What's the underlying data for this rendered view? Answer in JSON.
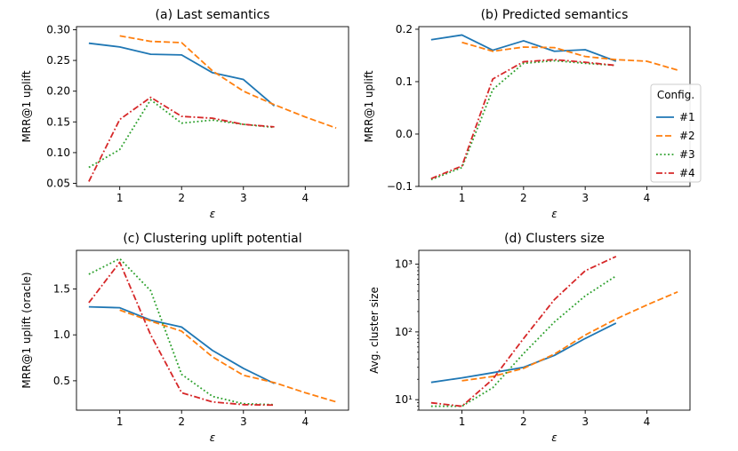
{
  "chart_data": [
    {
      "type": "line",
      "title": "(a) Last semantics",
      "xlabel": "ε",
      "ylabel": "MRR@1 uplift",
      "yscale": "linear",
      "xlim": [
        0.3,
        4.7
      ],
      "ylim": [
        0.045,
        0.305
      ],
      "xticks": [
        1,
        2,
        3,
        4
      ],
      "xtick_labels": [
        "1",
        "2",
        "3",
        "4"
      ],
      "yticks": [
        0.05,
        0.1,
        0.15,
        0.2,
        0.25,
        0.3
      ],
      "ytick_labels": [
        "0.05",
        "0.10",
        "0.15",
        "0.20",
        "0.25",
        "0.30"
      ],
      "series": [
        {
          "name": "#1",
          "color": "#1f77b4",
          "dash": "solid",
          "x": [
            0.5,
            1.0,
            1.5,
            2.0,
            2.5,
            3.0,
            3.5
          ],
          "y": [
            0.278,
            0.272,
            0.26,
            0.259,
            0.23,
            0.219,
            0.176
          ]
        },
        {
          "name": "#2",
          "color": "#ff7f0e",
          "dash": "dashed",
          "x": [
            1.0,
            1.5,
            2.0,
            2.5,
            3.0,
            3.5,
            4.0,
            4.5
          ],
          "y": [
            0.29,
            0.281,
            0.279,
            0.233,
            0.2,
            0.178,
            0.158,
            0.14
          ]
        },
        {
          "name": "#3",
          "color": "#2ca02c",
          "dash": "dotted",
          "x": [
            0.5,
            1.0,
            1.5,
            2.0,
            2.5,
            3.0,
            3.5
          ],
          "y": [
            0.076,
            0.105,
            0.186,
            0.148,
            0.153,
            0.146,
            0.141
          ]
        },
        {
          "name": "#4",
          "color": "#d62728",
          "dash": "dashdot",
          "x": [
            0.5,
            1.0,
            1.5,
            2.0,
            2.5,
            3.0,
            3.5
          ],
          "y": [
            0.053,
            0.154,
            0.19,
            0.159,
            0.156,
            0.146,
            0.142
          ]
        }
      ]
    },
    {
      "type": "line",
      "title": "(b) Predicted semantics",
      "xlabel": "ε",
      "ylabel": "MRR@1 uplift",
      "yscale": "linear",
      "xlim": [
        0.3,
        4.7
      ],
      "ylim": [
        -0.1,
        0.205
      ],
      "xticks": [
        1,
        2,
        3,
        4
      ],
      "xtick_labels": [
        "1",
        "2",
        "3",
        "4"
      ],
      "yticks": [
        -0.1,
        0.0,
        0.1,
        0.2
      ],
      "ytick_labels": [
        "−0.1",
        "0.0",
        "0.1",
        "0.2"
      ],
      "legend": {
        "title": "Config.",
        "entries": [
          "#1",
          "#2",
          "#3",
          "#4"
        ],
        "loc": "center-right"
      },
      "series": [
        {
          "name": "#1",
          "color": "#1f77b4",
          "dash": "solid",
          "x": [
            0.5,
            1.0,
            1.5,
            2.0,
            2.5,
            3.0,
            3.5
          ],
          "y": [
            0.18,
            0.189,
            0.16,
            0.178,
            0.158,
            0.161,
            0.139
          ]
        },
        {
          "name": "#2",
          "color": "#ff7f0e",
          "dash": "dashed",
          "x": [
            1.0,
            1.5,
            2.0,
            2.5,
            3.0,
            3.5,
            4.0,
            4.5
          ],
          "y": [
            0.175,
            0.158,
            0.166,
            0.165,
            0.148,
            0.142,
            0.139,
            0.122
          ]
        },
        {
          "name": "#3",
          "color": "#2ca02c",
          "dash": "dotted",
          "x": [
            0.5,
            1.0,
            1.5,
            2.0,
            2.5,
            3.0,
            3.5
          ],
          "y": [
            -0.087,
            -0.064,
            0.085,
            0.135,
            0.14,
            0.135,
            0.131
          ]
        },
        {
          "name": "#4",
          "color": "#d62728",
          "dash": "dashdot",
          "x": [
            0.5,
            1.0,
            1.5,
            2.0,
            2.5,
            3.0,
            3.5
          ],
          "y": [
            -0.085,
            -0.061,
            0.105,
            0.138,
            0.142,
            0.137,
            0.131
          ]
        }
      ]
    },
    {
      "type": "line",
      "title": "(c) Clustering uplift potential",
      "xlabel": "ε",
      "ylabel": "MRR@1 uplift (oracle)",
      "yscale": "linear",
      "xlim": [
        0.3,
        4.7
      ],
      "ylim": [
        0.18,
        1.92
      ],
      "xticks": [
        1,
        2,
        3,
        4
      ],
      "xtick_labels": [
        "1",
        "2",
        "3",
        "4"
      ],
      "yticks": [
        0.5,
        1.0,
        1.5
      ],
      "ytick_labels": [
        "0.5",
        "1.0",
        "1.5"
      ],
      "series": [
        {
          "name": "#1",
          "color": "#1f77b4",
          "dash": "solid",
          "x": [
            0.5,
            1.0,
            1.5,
            2.0,
            2.5,
            3.0,
            3.5
          ],
          "y": [
            1.305,
            1.295,
            1.16,
            1.085,
            0.83,
            0.635,
            0.47
          ]
        },
        {
          "name": "#2",
          "color": "#ff7f0e",
          "dash": "dashed",
          "x": [
            1.0,
            1.5,
            2.0,
            2.5,
            3.0,
            3.5,
            4.0,
            4.5
          ],
          "y": [
            1.27,
            1.15,
            1.04,
            0.76,
            0.56,
            0.48,
            0.37,
            0.27
          ]
        },
        {
          "name": "#3",
          "color": "#2ca02c",
          "dash": "dotted",
          "x": [
            0.5,
            1.0,
            1.5,
            2.0,
            2.5,
            3.0,
            3.5
          ],
          "y": [
            1.66,
            1.83,
            1.48,
            0.57,
            0.33,
            0.25,
            0.24
          ]
        },
        {
          "name": "#4",
          "color": "#d62728",
          "dash": "dashdot",
          "x": [
            0.5,
            1.0,
            1.5,
            2.0,
            2.5,
            3.0,
            3.5
          ],
          "y": [
            1.35,
            1.79,
            1.0,
            0.37,
            0.27,
            0.24,
            0.235
          ]
        }
      ]
    },
    {
      "type": "line",
      "title": "(d) Clusters size",
      "xlabel": "ε",
      "ylabel": "Avg. cluster size",
      "yscale": "log",
      "xlim": [
        0.3,
        4.7
      ],
      "ylim": [
        7,
        1600
      ],
      "xticks": [
        1,
        2,
        3,
        4
      ],
      "xtick_labels": [
        "1",
        "2",
        "3",
        "4"
      ],
      "yticks": [
        10,
        100,
        1000
      ],
      "ytick_labels": [
        "10¹",
        "10²",
        "10³"
      ],
      "series": [
        {
          "name": "#1",
          "color": "#1f77b4",
          "dash": "solid",
          "x": [
            0.5,
            1.0,
            1.5,
            2.0,
            2.5,
            3.0,
            3.5
          ],
          "y": [
            18,
            21,
            25,
            30,
            45,
            80,
            135
          ]
        },
        {
          "name": "#2",
          "color": "#ff7f0e",
          "dash": "dashed",
          "x": [
            1.0,
            1.5,
            2.0,
            2.5,
            3.0,
            3.5,
            4.0,
            4.5
          ],
          "y": [
            19,
            22,
            29,
            47,
            90,
            155,
            250,
            390
          ]
        },
        {
          "name": "#3",
          "color": "#2ca02c",
          "dash": "dotted",
          "x": [
            0.5,
            1.0,
            1.5,
            2.0,
            2.5,
            3.0,
            3.5
          ],
          "y": [
            8,
            8,
            15,
            48,
            140,
            340,
            670
          ]
        },
        {
          "name": "#4",
          "color": "#d62728",
          "dash": "dashdot",
          "x": [
            0.5,
            1.0,
            1.5,
            2.0,
            2.5,
            3.0,
            3.5
          ],
          "y": [
            9,
            8,
            20,
            80,
            300,
            800,
            1300
          ]
        }
      ]
    }
  ]
}
